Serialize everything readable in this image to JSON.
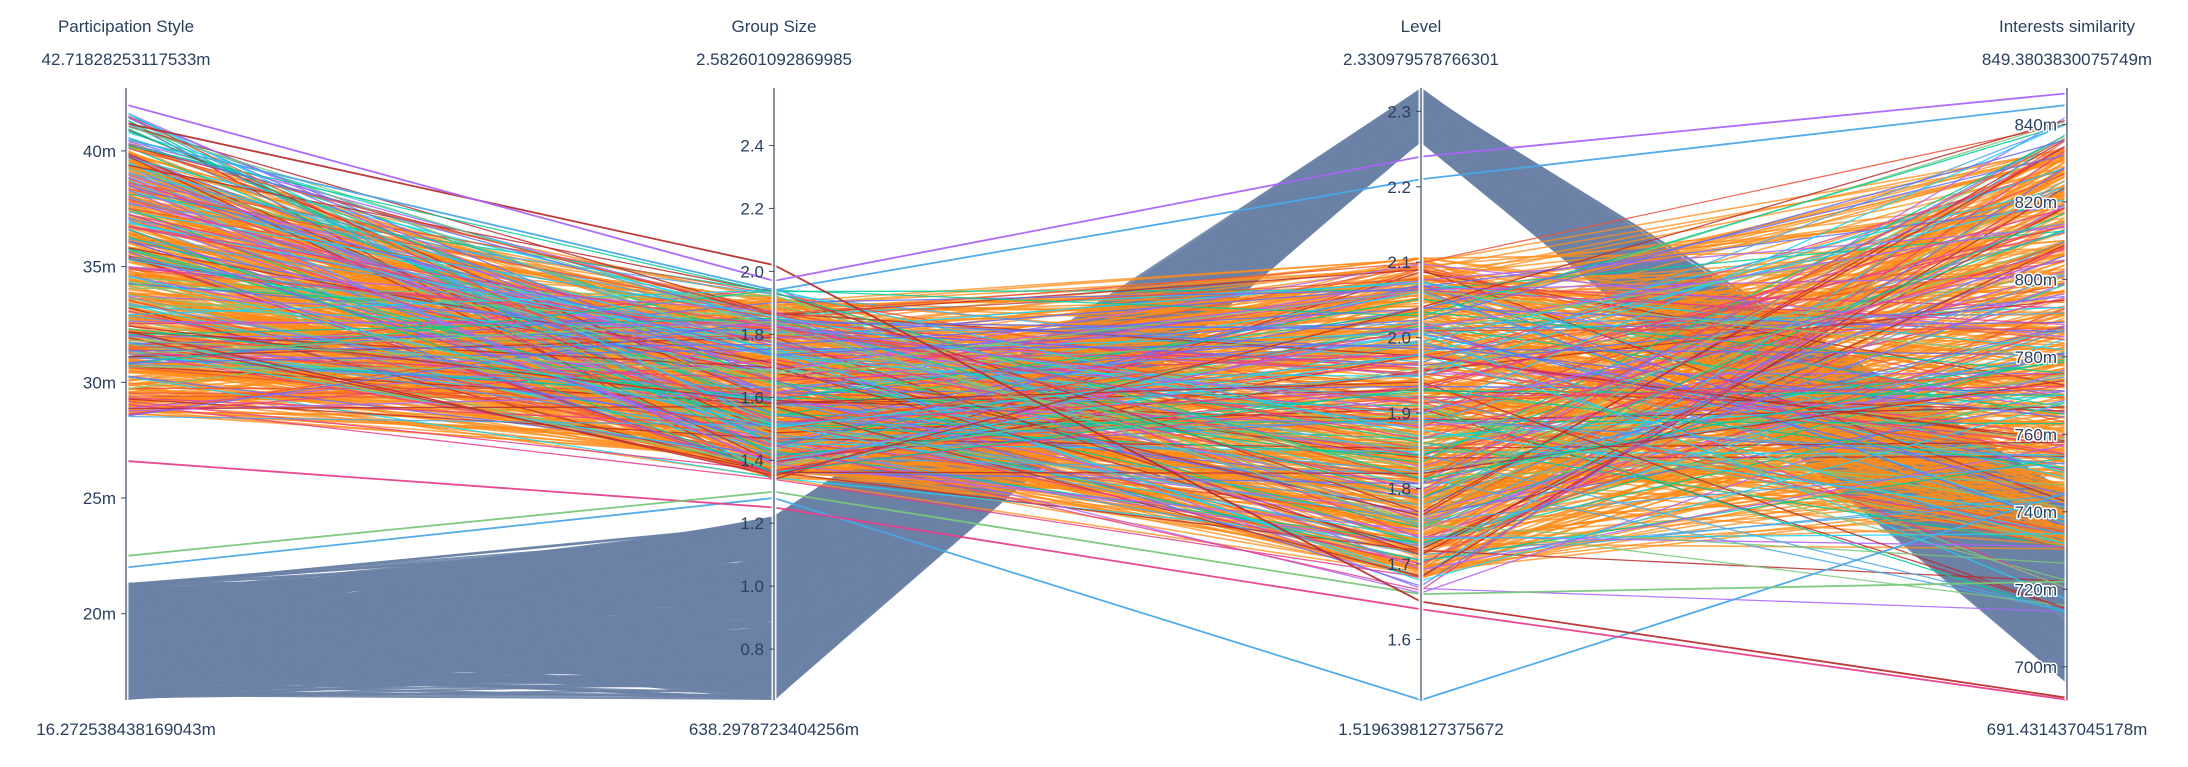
{
  "chart_data": {
    "type": "parcoords",
    "dimensions": [
      {
        "label": "Participation Style",
        "range_max_label": "42.71828253117533m",
        "range_min_label": "16.272538438169043m",
        "range": [
          0.016272538438169042,
          0.04271828253117533
        ],
        "ticks": [
          0.02,
          0.025,
          0.03,
          0.035,
          0.04
        ],
        "tick_labels": [
          "20m",
          "25m",
          "30m",
          "35m",
          "40m"
        ]
      },
      {
        "label": "Group Size",
        "range_max_label": "2.582601092869985",
        "range_min_label": "638.2978723404256m",
        "range": [
          0.6382978723404256,
          2.582601092869985
        ],
        "ticks": [
          0.8,
          1.0,
          1.2,
          1.4,
          1.6,
          1.8,
          2.0,
          2.2,
          2.4
        ],
        "tick_labels": [
          "0.8",
          "1.0",
          "1.2",
          "1.4",
          "1.6",
          "1.8",
          "2.0",
          "2.2",
          "2.4"
        ]
      },
      {
        "label": "Level",
        "range_max_label": "2.330979578766301",
        "range_min_label": "1.5196398127375672",
        "range": [
          1.5196398127375672,
          2.330979578766301
        ],
        "ticks": [
          1.6,
          1.7,
          1.8,
          1.9,
          2.0,
          2.1,
          2.2,
          2.3
        ],
        "tick_labels": [
          "1.6",
          "1.7",
          "1.8",
          "1.9",
          "2.0",
          "2.1",
          "2.2",
          "2.3"
        ]
      },
      {
        "label": "Interests similarity",
        "range_max_label": "849.3803830075749m",
        "range_min_label": "691.431437045178m",
        "range": [
          0.691431437045178,
          0.8493803830075749
        ],
        "ticks": [
          0.7,
          0.72,
          0.74,
          0.76,
          0.78,
          0.8,
          0.82,
          0.84
        ],
        "tick_labels": [
          "700m",
          "720m",
          "740m",
          "760m",
          "780m",
          "800m",
          "820m",
          "840m"
        ]
      }
    ],
    "groups": [
      {
        "color": "#6b82a6",
        "count": 520,
        "ranges": [
          [
            0.0163,
            0.0213
          ],
          [
            0.64,
            1.22
          ],
          [
            2.26,
            2.33
          ],
          [
            0.696,
            0.745
          ]
        ]
      },
      {
        "color": "#ff8c1a",
        "count": 360,
        "ranges": [
          [
            0.0285,
            0.0405
          ],
          [
            1.34,
            1.92
          ],
          [
            1.68,
            2.11
          ],
          [
            0.73,
            0.835
          ]
        ]
      }
    ],
    "accent_colors": [
      "#ab63fa",
      "#ef553b",
      "#00cc96",
      "#19d3f3",
      "#636efa",
      "#b82e2e",
      "#e83e8c",
      "#7ac77a",
      "#4aa8e8"
    ],
    "accent_count": 170,
    "special_lines": [
      {
        "color": "#4aa8e8",
        "values": [
          0.022,
          1.28,
          1.5196,
          0.745
        ]
      },
      {
        "color": "#4aa8e8",
        "values": [
          0.0405,
          1.94,
          2.21,
          0.845
        ]
      },
      {
        "color": "#e83e8c",
        "values": [
          0.0266,
          1.25,
          1.64,
          0.6915
        ]
      },
      {
        "color": "#7ac77a",
        "values": [
          0.0225,
          1.3,
          1.66,
          0.722
        ]
      },
      {
        "color": "#b82e2e",
        "values": [
          0.0412,
          2.02,
          1.65,
          0.692
        ]
      },
      {
        "color": "#ab63fa",
        "values": [
          0.042,
          1.97,
          2.24,
          0.848
        ]
      }
    ]
  }
}
